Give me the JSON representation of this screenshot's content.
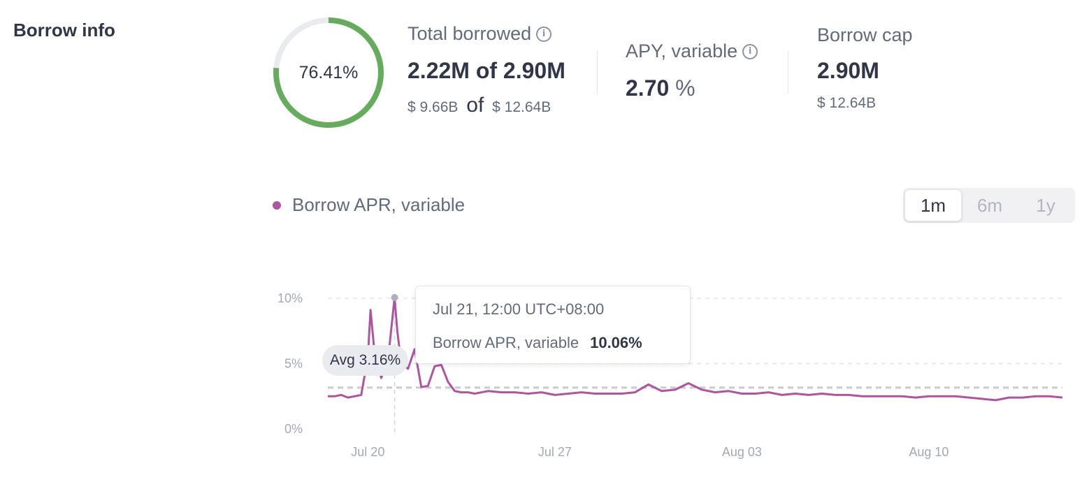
{
  "section": {
    "title": "Borrow info"
  },
  "donut": {
    "percent_label": "76.41%",
    "fraction": 0.7641,
    "color": "#65ac5d",
    "track_color": "#eaebef"
  },
  "total_borrowed": {
    "label": "Total borrowed",
    "amount": "2.22M",
    "of": "of",
    "cap": "2.90M",
    "usd_symbol": "$",
    "usd_amount": "9.66B",
    "usd_cap": "12.64B"
  },
  "apy": {
    "label": "APY, variable",
    "value": "2.70",
    "unit": "%"
  },
  "borrow_cap": {
    "label": "Borrow cap",
    "value": "2.90M",
    "usd_symbol": "$",
    "usd_value": "12.64B"
  },
  "icons": {
    "info": "info-icon"
  },
  "legend": {
    "label": "Borrow APR, variable",
    "color": "#b0549f"
  },
  "range": {
    "options": [
      "1m",
      "6m",
      "1y"
    ],
    "selected": "1m"
  },
  "avg_badge": {
    "label": "Avg 3.16%"
  },
  "tooltip": {
    "date": "Jul 21, 12:00 UTC+08:00",
    "series_label": "Borrow APR, variable",
    "value": "10.06%"
  },
  "chart_data": {
    "type": "line",
    "ylim": [
      0,
      10
    ],
    "y_ticks": [
      "10%",
      "5%",
      "0%"
    ],
    "x_ticks": [
      "Jul 20",
      "Jul 27",
      "Aug 03",
      "Aug 10"
    ],
    "average": 3.16,
    "series": [
      {
        "color": "#b0549f",
        "x": [
          18.5,
          18.75,
          19,
          19.25,
          19.5,
          19.75,
          20,
          20.1,
          20.25,
          20.5,
          20.75,
          21,
          21.1,
          21.25,
          21.5,
          21.75,
          22,
          22.25,
          22.5,
          22.75,
          23,
          23.25,
          23.5,
          23.75,
          24,
          24.5,
          25,
          25.5,
          26,
          26.5,
          27,
          27.5,
          28,
          28.5,
          29,
          29.5,
          30,
          30.5,
          31,
          31.5,
          32,
          32.5,
          33,
          33.5,
          34,
          34.5,
          35,
          35.5,
          36,
          36.5,
          37,
          37.5,
          38,
          38.5,
          39,
          39.5,
          40,
          40.5,
          41,
          41.5,
          42,
          42.5,
          43,
          43.5,
          44,
          44.5,
          45,
          45.5,
          46
        ],
        "y": [
          2.5,
          2.5,
          2.6,
          2.4,
          2.5,
          2.6,
          5.5,
          9.1,
          5.8,
          3.9,
          5.2,
          10.06,
          7.5,
          5.0,
          4.6,
          6.1,
          3.2,
          3.3,
          4.8,
          4.9,
          3.6,
          2.9,
          2.8,
          2.8,
          2.7,
          2.9,
          2.8,
          2.8,
          2.7,
          2.8,
          2.6,
          2.7,
          2.8,
          2.7,
          2.7,
          2.7,
          2.8,
          3.4,
          2.9,
          3.0,
          3.5,
          3.0,
          2.8,
          2.9,
          2.7,
          2.7,
          2.8,
          2.6,
          2.7,
          2.6,
          2.7,
          2.6,
          2.6,
          2.5,
          2.5,
          2.5,
          2.5,
          2.4,
          2.5,
          2.5,
          2.5,
          2.4,
          2.3,
          2.2,
          2.4,
          2.4,
          2.5,
          2.5,
          2.4
        ]
      }
    ],
    "highlight_point": {
      "x": 21,
      "y": 10.06
    }
  }
}
